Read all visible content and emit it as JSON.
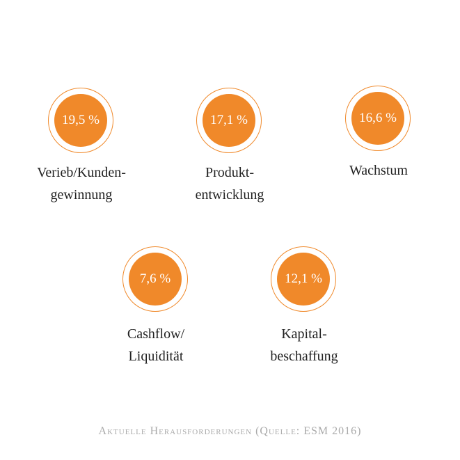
{
  "chart_data": {
    "type": "bubble-badges",
    "unit": "%",
    "accent_color": "#f0892a",
    "items": [
      {
        "label_lines": [
          "Verieb/Kunden-",
          "gewinnung"
        ],
        "value": 19.5,
        "display": "19,5 %"
      },
      {
        "label_lines": [
          "Produkt-",
          "entwicklung"
        ],
        "value": 17.1,
        "display": "17,1 %"
      },
      {
        "label_lines": [
          "Wachstum"
        ],
        "value": 16.6,
        "display": "16,6 %"
      },
      {
        "label_lines": [
          "Cashflow/",
          "Liquidität"
        ],
        "value": 7.6,
        "display": "7,6 %"
      },
      {
        "label_lines": [
          "Kapital-",
          "beschaffung"
        ],
        "value": 12.1,
        "display": "12,1 %"
      }
    ],
    "caption": "Aktuelle Herausforderungen (Quelle: ESM 2016)"
  }
}
